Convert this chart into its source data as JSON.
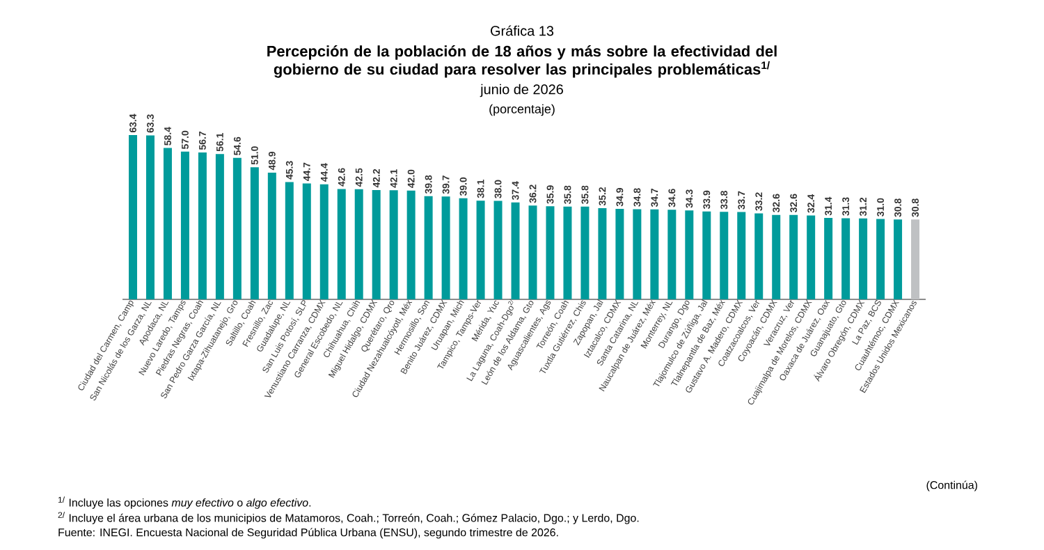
{
  "chart_data": {
    "type": "bar",
    "title": "Percepción de la población de 18 años y más sobre la efectividad del gobierno de su ciudad para resolver las principales problemáticas$^{1/}$",
    "subtitle": "junio de 2026",
    "categories": [
      "Ciudad del Carmen, Camp",
      "San Nicolás de los Garza, NL",
      "Apodaca, NL",
      "Nuevo Laredo, Tamps",
      "Piedras Negras, Coah",
      "San Pedro Garza García, NL",
      "Ixtapa-Zihuatanejo, Gro",
      "Saltillo, Coah",
      "Fresnillo, Zac",
      "Guadalupe, NL",
      "San Luis Potosí, SLP",
      "Venustiano Carranza, CDMX",
      "General Escobedo, NL",
      "Chihuahua, Chih",
      "Miguel Hidalgo, CDMX",
      "Querétaro, Qro",
      "Ciudad Nezahualcóyotl, Méx",
      "Hermosillo, Son",
      "Benito Juárez, CDMX",
      "Uruapan, Mich",
      "Tampico, Tamps-Ver",
      "Mérida, Yuc",
      "La Laguna, Coah-Dgo$^{2/}$",
      "León de los Aldama, Gto",
      "Aguascalientes, Ags",
      "Torreón, Coah",
      "Tuxtla Gutiérrez, Chis",
      "Zapopan, Jal",
      "Iztacalco, CDMX",
      "Santa Catarina, NL",
      "Naucalpan de Juárez, Méx",
      "Monterrey, NL",
      "Durango, Dgo",
      "Tlajomulco de Zúñiga, Jal",
      "Tlalnepantla de Baz, Méx",
      "Gustavo A. Madero, CDMX",
      "Coatzacoalcos, Ver",
      "Coyoacán, CDMX",
      "Veracruz, Ver",
      "Cuajimalpa de Morelos, CDMX",
      "Oaxaca de Juárez, Oax",
      "Guanajuato, Gto",
      "Álvaro Obregón, CDMX",
      "La Paz, BCS",
      "Cuauhtémoc, CDMX",
      "Estados Unidos Mexicanos"
    ],
    "values": [
      63.4,
      63.3,
      58.4,
      57.0,
      56.7,
      56.1,
      54.6,
      51.0,
      48.9,
      45.3,
      44.7,
      44.4,
      42.6,
      42.5,
      42.2,
      42.1,
      42.0,
      39.8,
      39.7,
      39.0,
      38.1,
      38.0,
      37.4,
      36.2,
      35.9,
      35.8,
      35.8,
      35.2,
      34.9,
      34.8,
      34.7,
      34.6,
      34.3,
      33.9,
      33.8,
      33.7,
      33.2,
      32.6,
      32.6,
      32.4,
      31.4,
      31.3,
      31.2,
      31.0,
      30.8,
      30.8
    ],
    "value_labels": [
      "63.4",
      "63.3",
      "58.4",
      "57.0",
      "56.7",
      "56.1",
      "54.6",
      "51.0",
      "48.9",
      "45.3",
      "44.7",
      "44.4",
      "42.6",
      "42.5",
      "42.2",
      "42.1",
      "42.0",
      "39.8",
      "39.7",
      "39.0",
      "38.1",
      "38.0",
      "37.4",
      "36.2",
      "35.9",
      "35.8",
      "35.8",
      "35.2",
      "34.9",
      "34.8",
      "34.7",
      "34.6",
      "34.3",
      "33.9",
      "33.8",
      "33.7",
      "33.2",
      "32.6",
      "32.6",
      "32.4",
      "31.4",
      "31.3",
      "31.2",
      "31.0",
      "30.8",
      "30.8"
    ],
    "colors": [
      "#009b9b",
      "#009b9b",
      "#009b9b",
      "#009b9b",
      "#009b9b",
      "#009b9b",
      "#009b9b",
      "#009b9b",
      "#009b9b",
      "#009b9b",
      "#009b9b",
      "#009b9b",
      "#009b9b",
      "#009b9b",
      "#009b9b",
      "#009b9b",
      "#009b9b",
      "#009b9b",
      "#009b9b",
      "#009b9b",
      "#009b9b",
      "#009b9b",
      "#009b9b",
      "#009b9b",
      "#009b9b",
      "#009b9b",
      "#009b9b",
      "#009b9b",
      "#009b9b",
      "#009b9b",
      "#009b9b",
      "#009b9b",
      "#009b9b",
      "#009b9b",
      "#009b9b",
      "#009b9b",
      "#009b9b",
      "#009b9b",
      "#009b9b",
      "#009b9b",
      "#009b9b",
      "#009b9b",
      "#009b9b",
      "#009b9b",
      "#009b9b",
      "#bfc1c3"
    ],
    "annotations": [
      "Gráfica 13",
      "(porcentaje)",
      "(Continúa)",
      "$^{1/}$        Incluye las opciones *muy efectivo* o *algo efectivo*.",
      "$^{2/}$        Incluye el área urbana de los municipios de Matamoros, Coah.; Torreón, Coah.; Gómez Palacio, Dgo.; y Lerdo, Dgo.",
      "Fuente: INEGI. Encuesta Nacional de Seguridad Pública Urbana (ENSU), segundo trimestre de 2026."
    ]
  }
}
